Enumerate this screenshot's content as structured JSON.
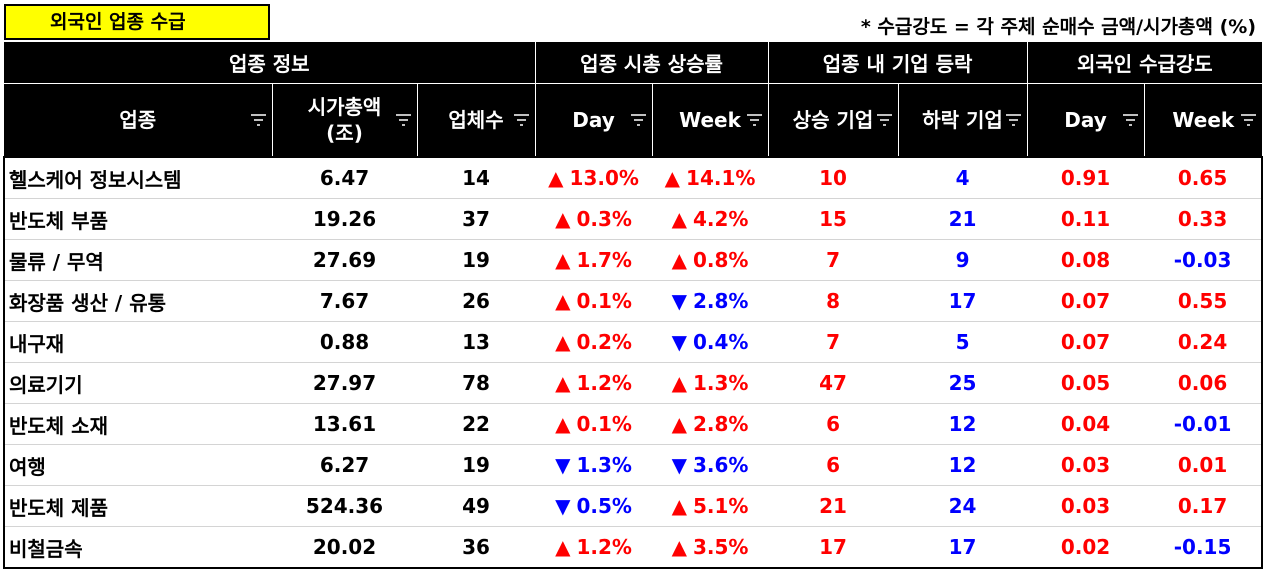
{
  "title": "외국인 업종 수급",
  "note": "* 수급강도 = 각 주체 순매수 금액/시가총액 (%)",
  "groups": {
    "info": "업종 정보",
    "market_cap_change": "업종 시총 상승률",
    "company_updown": "업종 내 기업 등락",
    "foreign_intensity": "외국인 수급강도"
  },
  "headers": {
    "sector": "업종",
    "market_cap_line1": "시가총액",
    "market_cap_line2": "(조)",
    "count": "업체수",
    "cap_day": "Day",
    "cap_week": "Week",
    "up": "상승 기업",
    "down": "하락 기업",
    "int_day": "Day",
    "int_week": "Week"
  },
  "colors": {
    "up": "#ff0000",
    "down": "#0000ff",
    "title_bg": "#ffff00",
    "header_bg": "#000000"
  },
  "rows": [
    {
      "sector": "헬스케어 정보시스템",
      "cap": "6.47",
      "count": "14",
      "day_dir": "up",
      "day_arrow": "▲",
      "day": "13.0%",
      "week_dir": "up",
      "week_arrow": "▲",
      "week": "14.1%",
      "up": "10",
      "down": "4",
      "fday_dir": "up",
      "fday": "0.91",
      "fweek_dir": "up",
      "fweek": "0.65"
    },
    {
      "sector": "반도체 부품",
      "cap": "19.26",
      "count": "37",
      "day_dir": "up",
      "day_arrow": "▲",
      "day": "0.3%",
      "week_dir": "up",
      "week_arrow": "▲",
      "week": "4.2%",
      "up": "15",
      "down": "21",
      "fday_dir": "up",
      "fday": "0.11",
      "fweek_dir": "up",
      "fweek": "0.33"
    },
    {
      "sector": "물류 / 무역",
      "cap": "27.69",
      "count": "19",
      "day_dir": "up",
      "day_arrow": "▲",
      "day": "1.7%",
      "week_dir": "up",
      "week_arrow": "▲",
      "week": "0.8%",
      "up": "7",
      "down": "9",
      "fday_dir": "up",
      "fday": "0.08",
      "fweek_dir": "down",
      "fweek": "-0.03"
    },
    {
      "sector": "화장품 생산 / 유통",
      "cap": "7.67",
      "count": "26",
      "day_dir": "up",
      "day_arrow": "▲",
      "day": "0.1%",
      "week_dir": "down",
      "week_arrow": "▼",
      "week": "2.8%",
      "up": "8",
      "down": "17",
      "fday_dir": "up",
      "fday": "0.07",
      "fweek_dir": "up",
      "fweek": "0.55"
    },
    {
      "sector": "내구재",
      "cap": "0.88",
      "count": "13",
      "day_dir": "up",
      "day_arrow": "▲",
      "day": "0.2%",
      "week_dir": "down",
      "week_arrow": "▼",
      "week": "0.4%",
      "up": "7",
      "down": "5",
      "fday_dir": "up",
      "fday": "0.07",
      "fweek_dir": "up",
      "fweek": "0.24"
    },
    {
      "sector": "의료기기",
      "cap": "27.97",
      "count": "78",
      "day_dir": "up",
      "day_arrow": "▲",
      "day": "1.2%",
      "week_dir": "up",
      "week_arrow": "▲",
      "week": "1.3%",
      "up": "47",
      "down": "25",
      "fday_dir": "up",
      "fday": "0.05",
      "fweek_dir": "up",
      "fweek": "0.06"
    },
    {
      "sector": "반도체 소재",
      "cap": "13.61",
      "count": "22",
      "day_dir": "up",
      "day_arrow": "▲",
      "day": "0.1%",
      "week_dir": "up",
      "week_arrow": "▲",
      "week": "2.8%",
      "up": "6",
      "down": "12",
      "fday_dir": "up",
      "fday": "0.04",
      "fweek_dir": "down",
      "fweek": "-0.01"
    },
    {
      "sector": "여행",
      "cap": "6.27",
      "count": "19",
      "day_dir": "down",
      "day_arrow": "▼",
      "day": "1.3%",
      "week_dir": "down",
      "week_arrow": "▼",
      "week": "3.6%",
      "up": "6",
      "down": "12",
      "fday_dir": "up",
      "fday": "0.03",
      "fweek_dir": "up",
      "fweek": "0.01"
    },
    {
      "sector": "반도체 제품",
      "cap": "524.36",
      "count": "49",
      "day_dir": "down",
      "day_arrow": "▼",
      "day": "0.5%",
      "week_dir": "up",
      "week_arrow": "▲",
      "week": "5.1%",
      "up": "21",
      "down": "24",
      "fday_dir": "up",
      "fday": "0.03",
      "fweek_dir": "up",
      "fweek": "0.17"
    },
    {
      "sector": "비철금속",
      "cap": "20.02",
      "count": "36",
      "day_dir": "up",
      "day_arrow": "▲",
      "day": "1.2%",
      "week_dir": "up",
      "week_arrow": "▲",
      "week": "3.5%",
      "up": "17",
      "down": "17",
      "fday_dir": "up",
      "fday": "0.02",
      "fweek_dir": "down",
      "fweek": "-0.15"
    }
  ]
}
